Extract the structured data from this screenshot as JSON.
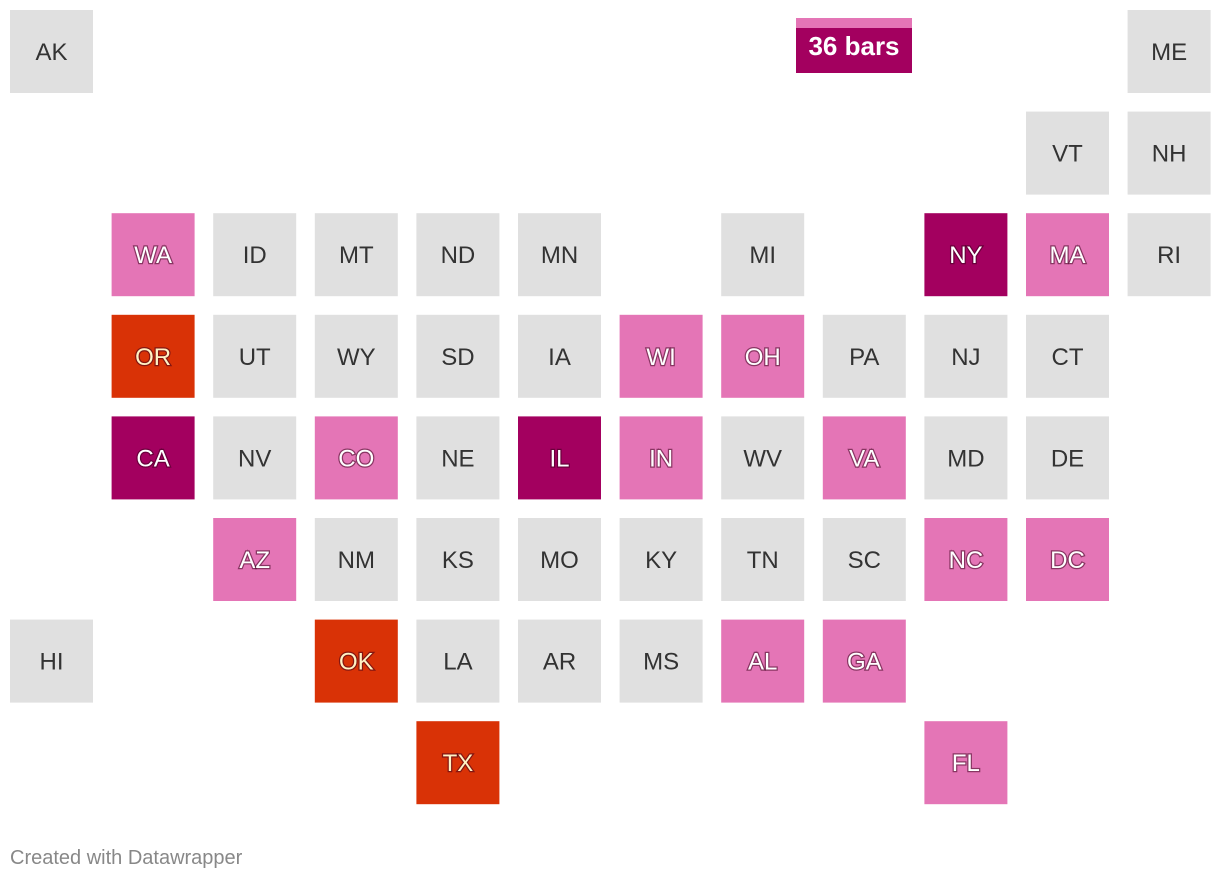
{
  "legend": {
    "label": "36 bars",
    "color": "#a3005f"
  },
  "tiles": [
    {
      "state": "AK",
      "color": "#e0e0e0"
    },
    {
      "state": "ME",
      "color": "#e0e0e0"
    },
    {
      "state": "VT",
      "color": "#e0e0e0"
    },
    {
      "state": "NH",
      "color": "#e0e0e0"
    },
    {
      "state": "WA",
      "color": "#e475b6"
    },
    {
      "state": "ID",
      "color": "#e0e0e0"
    },
    {
      "state": "MT",
      "color": "#e0e0e0"
    },
    {
      "state": "ND",
      "color": "#e0e0e0"
    },
    {
      "state": "MN",
      "color": "#e0e0e0"
    },
    {
      "state": "MI",
      "color": "#e0e0e0"
    },
    {
      "state": "NY",
      "color": "#a3005f"
    },
    {
      "state": "MA",
      "color": "#e475b6"
    },
    {
      "state": "RI",
      "color": "#e0e0e0"
    },
    {
      "state": "OR",
      "color": "#d93206"
    },
    {
      "state": "UT",
      "color": "#e0e0e0"
    },
    {
      "state": "WY",
      "color": "#e0e0e0"
    },
    {
      "state": "SD",
      "color": "#e0e0e0"
    },
    {
      "state": "IA",
      "color": "#e0e0e0"
    },
    {
      "state": "WI",
      "color": "#e475b6"
    },
    {
      "state": "OH",
      "color": "#e475b6"
    },
    {
      "state": "PA",
      "color": "#e0e0e0"
    },
    {
      "state": "NJ",
      "color": "#e0e0e0"
    },
    {
      "state": "CT",
      "color": "#e0e0e0"
    },
    {
      "state": "CA",
      "color": "#a3005f"
    },
    {
      "state": "NV",
      "color": "#e0e0e0"
    },
    {
      "state": "CO",
      "color": "#e475b6"
    },
    {
      "state": "NE",
      "color": "#e0e0e0"
    },
    {
      "state": "IL",
      "color": "#a3005f"
    },
    {
      "state": "IN",
      "color": "#e475b6"
    },
    {
      "state": "WV",
      "color": "#e0e0e0"
    },
    {
      "state": "VA",
      "color": "#e475b6"
    },
    {
      "state": "MD",
      "color": "#e0e0e0"
    },
    {
      "state": "DE",
      "color": "#e0e0e0"
    },
    {
      "state": "AZ",
      "color": "#e475b6"
    },
    {
      "state": "NM",
      "color": "#e0e0e0"
    },
    {
      "state": "KS",
      "color": "#e0e0e0"
    },
    {
      "state": "MO",
      "color": "#e0e0e0"
    },
    {
      "state": "KY",
      "color": "#e0e0e0"
    },
    {
      "state": "TN",
      "color": "#e0e0e0"
    },
    {
      "state": "SC",
      "color": "#e0e0e0"
    },
    {
      "state": "NC",
      "color": "#e475b6"
    },
    {
      "state": "DC",
      "color": "#e475b6"
    },
    {
      "state": "HI",
      "color": "#e0e0e0"
    },
    {
      "state": "OK",
      "color": "#d93206"
    },
    {
      "state": "LA",
      "color": "#e0e0e0"
    },
    {
      "state": "AR",
      "color": "#e0e0e0"
    },
    {
      "state": "MS",
      "color": "#e0e0e0"
    },
    {
      "state": "AL",
      "color": "#e475b6"
    },
    {
      "state": "GA",
      "color": "#e475b6"
    },
    {
      "state": "TX",
      "color": "#d93206"
    },
    {
      "state": "FL",
      "color": "#e475b6"
    }
  ],
  "footer": "Created with Datawrapper"
}
